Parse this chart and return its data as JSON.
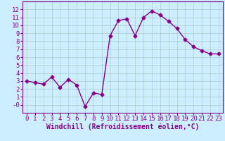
{
  "x": [
    0,
    1,
    2,
    3,
    4,
    5,
    6,
    7,
    8,
    9,
    10,
    11,
    12,
    13,
    14,
    15,
    16,
    17,
    18,
    19,
    20,
    21,
    22,
    23
  ],
  "y": [
    3.0,
    2.8,
    2.6,
    3.5,
    2.2,
    3.2,
    2.5,
    -0.2,
    1.5,
    1.3,
    8.7,
    10.6,
    10.8,
    8.7,
    11.0,
    11.8,
    11.3,
    10.5,
    9.6,
    8.2,
    7.3,
    6.8,
    6.4,
    6.4
  ],
  "line_color": "#880088",
  "marker": "D",
  "marker_size": 2.5,
  "bg_color": "#cceeff",
  "grid_color": "#aacccc",
  "xlabel": "Windchill (Refroidissement éolien,°C)",
  "xlim": [
    -0.5,
    23.5
  ],
  "ylim": [
    -1,
    13
  ],
  "xticks": [
    0,
    1,
    2,
    3,
    4,
    5,
    6,
    7,
    8,
    9,
    10,
    11,
    12,
    13,
    14,
    15,
    16,
    17,
    18,
    19,
    20,
    21,
    22,
    23
  ],
  "yticks": [
    0,
    1,
    2,
    3,
    4,
    5,
    6,
    7,
    8,
    9,
    10,
    11,
    12
  ],
  "ytick_labels": [
    "-0",
    "1",
    "2",
    "3",
    "4",
    "5",
    "6",
    "7",
    "8",
    "9",
    "10",
    "11",
    "12"
  ],
  "tick_color": "#880088",
  "label_color": "#880088",
  "font_size": 6.5,
  "xlabel_fontsize": 7,
  "line_width": 1.0
}
